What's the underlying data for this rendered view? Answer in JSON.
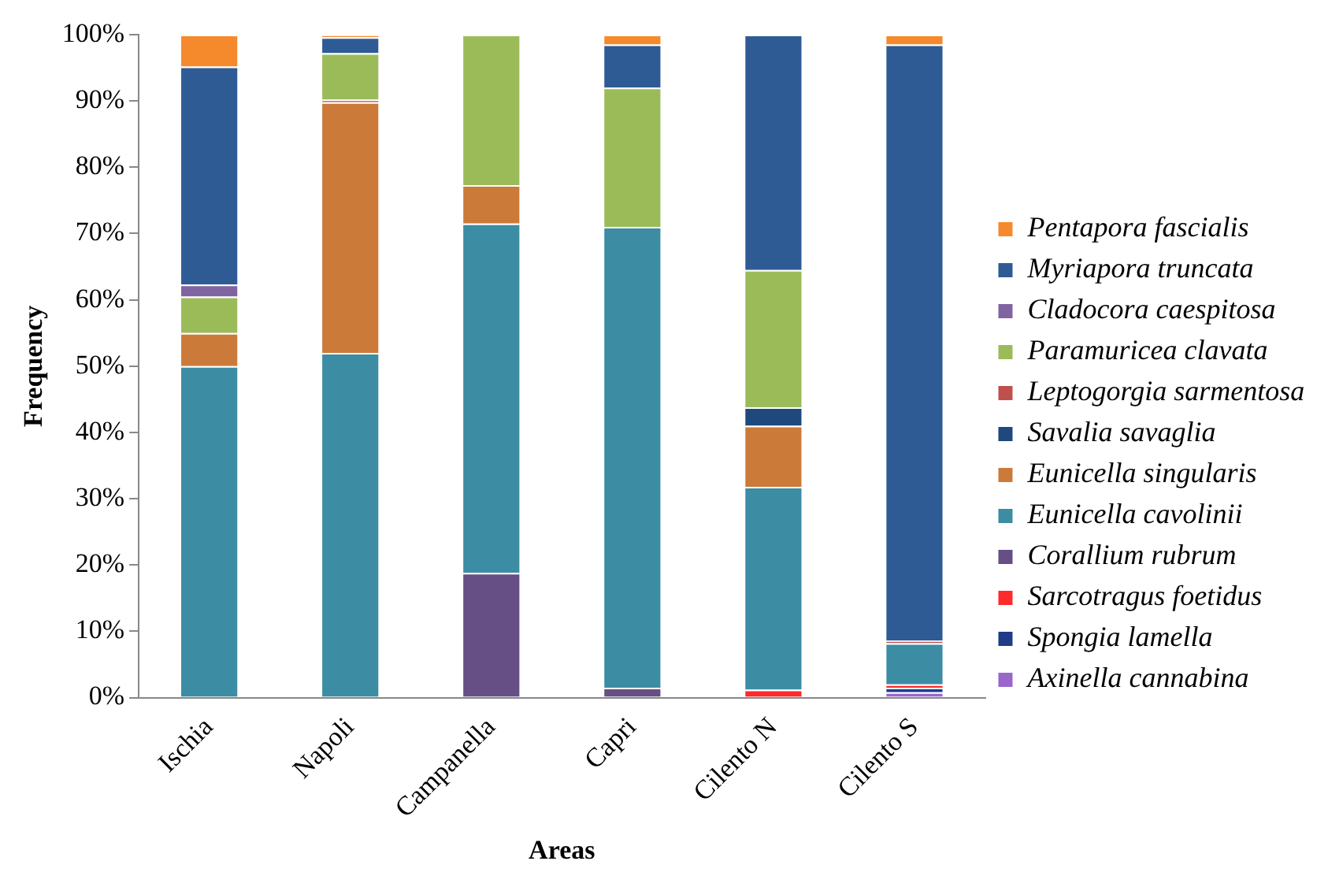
{
  "chart_data": {
    "type": "bar",
    "stacked": true,
    "xlabel": "Areas",
    "ylabel": "Frequency",
    "categories": [
      "Ischia",
      "Napoli",
      "Campanella",
      "Capri",
      "Cilento N",
      "Cilento S"
    ],
    "ylim": [
      0,
      100
    ],
    "yticks": [
      {
        "value": 0,
        "label": "0%"
      },
      {
        "value": 10,
        "label": "10%"
      },
      {
        "value": 20,
        "label": "20%"
      },
      {
        "value": 30,
        "label": "30%"
      },
      {
        "value": 40,
        "label": "40%"
      },
      {
        "value": 50,
        "label": "50%"
      },
      {
        "value": 60,
        "label": "60%"
      },
      {
        "value": 70,
        "label": "70%"
      },
      {
        "value": 80,
        "label": "80%"
      },
      {
        "value": 90,
        "label": "90%"
      },
      {
        "value": 100,
        "label": "100%"
      }
    ],
    "grid": false,
    "legend": "right",
    "series": [
      {
        "name": "Axinella cannabina",
        "color": "#9966cc",
        "values": [
          null,
          null,
          null,
          null,
          null,
          0.8
        ]
      },
      {
        "name": "Spongia lamella",
        "color": "#1f3c88",
        "values": [
          null,
          null,
          null,
          null,
          null,
          0.7
        ]
      },
      {
        "name": "Sarcotragus foetidus",
        "color": "#ff2a2a",
        "values": [
          null,
          null,
          null,
          null,
          1.2,
          0.5
        ]
      },
      {
        "name": "Corallium rubrum",
        "color": "#664f85",
        "values": [
          null,
          null,
          18.8,
          1.5,
          null,
          null
        ]
      },
      {
        "name": "Eunicella cavolinii",
        "color": "#3c8ca4",
        "values": [
          50,
          52,
          52.7,
          69.5,
          30.6,
          6.2
        ]
      },
      {
        "name": "Eunicella singularis",
        "color": "#cc7a3a",
        "values": [
          5,
          37.8,
          5.8,
          null,
          9.2,
          null
        ]
      },
      {
        "name": "Savalia savaglia",
        "color": "#1f497d",
        "values": [
          null,
          null,
          null,
          null,
          2.8,
          null
        ]
      },
      {
        "name": "Leptogorgia sarmentosa",
        "color": "#c0504d",
        "values": [
          null,
          0.4,
          null,
          null,
          null,
          0.4
        ]
      },
      {
        "name": "Paramuricea clavata",
        "color": "#9bbb59",
        "values": [
          5.5,
          7,
          22.7,
          21,
          20.7,
          null
        ]
      },
      {
        "name": "Cladocora caespitosa",
        "color": "#8064a2",
        "values": [
          1.8,
          null,
          null,
          null,
          null,
          null
        ]
      },
      {
        "name": "Myriapora truncata",
        "color": "#2e5b94",
        "values": [
          32.9,
          2.4,
          null,
          6.5,
          35.5,
          89.9
        ]
      },
      {
        "name": "Pentapora fascialis",
        "color": "#f58a2c",
        "values": [
          4.8,
          0.4,
          null,
          1.5,
          null,
          1.5
        ]
      }
    ]
  }
}
